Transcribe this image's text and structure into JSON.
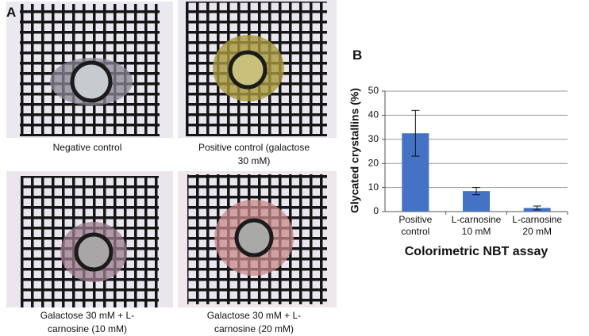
{
  "panels": [
    {
      "label": "A",
      "captions": [
        "Negative control",
        "Positive control (galactose 30 mM)",
        "Galactose 30 mM + L-carnosine (10 mM)",
        "Galactose 30 mM + L-carnosine (20 mM)"
      ]
    },
    {
      "label": "B"
    }
  ],
  "chart_data": {
    "type": "bar",
    "x_label": "Colorimetric NBT assay",
    "y_label": "Glycated crystallins (%)",
    "categories": [
      "Positive control",
      "L-carnosine 10 mM",
      "L-carnosine 20 mM"
    ],
    "values": [
      32.5,
      8.5,
      1.5
    ],
    "errors": [
      9.5,
      1.5,
      0.8
    ],
    "color": "#4472c4",
    "ylim": [
      0,
      50
    ],
    "yticks": [
      0,
      10,
      20,
      30,
      40,
      50
    ],
    "grid": true
  }
}
